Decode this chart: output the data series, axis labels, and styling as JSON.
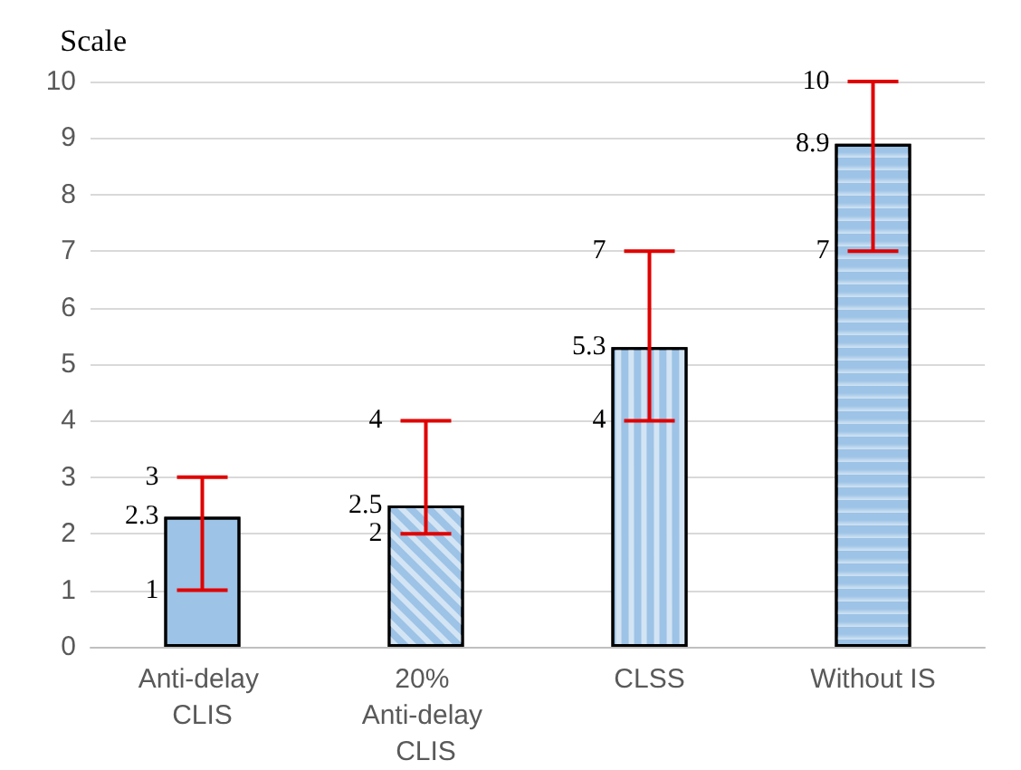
{
  "chart_data": {
    "type": "bar",
    "ylabel": "Scale",
    "categories": [
      "Anti-delay CLIS",
      "20% Anti-delay CLIS",
      "CLSS",
      "Without IS"
    ],
    "values": [
      2.3,
      2.5,
      5.3,
      8.9
    ],
    "colors": [
      "#9dc3e6",
      "#9dc3e6",
      "#9dc3e6",
      "#9dc3e6"
    ],
    "value_labels": [
      "2.3",
      "2.5",
      "5.3",
      "8.9"
    ],
    "errors": [
      [
        1,
        3
      ],
      [
        2,
        4
      ],
      [
        4,
        7
      ],
      [
        7,
        10
      ]
    ],
    "annotations": [
      {
        "text": "3",
        "x": "Anti-delay CLIS",
        "y": 3
      },
      {
        "text": "1",
        "x": "Anti-delay CLIS",
        "y": 1
      },
      {
        "text": "4",
        "x": "20% Anti-delay CLIS",
        "y": 4
      },
      {
        "text": "2",
        "x": "20% Anti-delay CLIS",
        "y": 2
      },
      {
        "text": "7",
        "x": "CLSS",
        "y": 7
      },
      {
        "text": "4",
        "x": "CLSS",
        "y": 4
      },
      {
        "text": "10",
        "x": "Without IS",
        "y": 10
      },
      {
        "text": "7",
        "x": "Without IS",
        "y": 7
      }
    ],
    "ylim": [
      0,
      10
    ],
    "yticks": [
      0,
      1,
      2,
      3,
      4,
      5,
      6,
      7,
      8,
      9,
      10
    ],
    "grid": "y"
  }
}
